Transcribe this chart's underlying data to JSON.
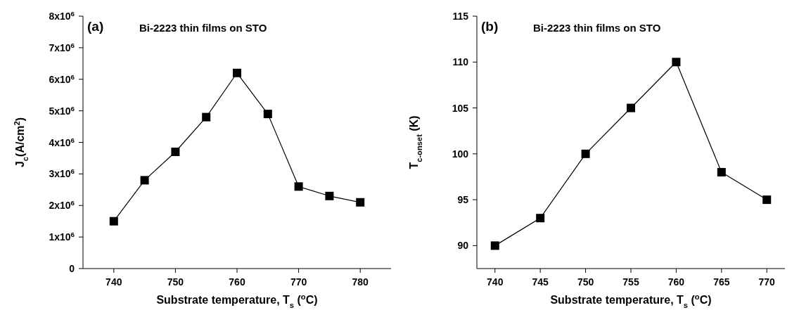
{
  "chart_data": [
    {
      "type": "line",
      "title": "Bi-2223 thin films on STO",
      "annotations": [
        "(a)"
      ],
      "xlabel": "Substrate temperature, T$_{s}$ ($^{o}$C)",
      "ylabel": "J$_{c}$(A/cm$^{2}$)",
      "x": [
        740,
        745,
        750,
        755,
        760,
        765,
        770,
        775,
        780
      ],
      "series": [
        {
          "color": "#000000",
          "values": [
            1500000,
            2800000,
            3700000,
            4800000,
            6200000,
            4900000,
            2600000,
            2300000,
            2100000
          ]
        }
      ],
      "xlim": [
        735,
        785
      ],
      "xticks": [
        740,
        750,
        760,
        770,
        780
      ],
      "ylim": [
        0,
        8000000
      ],
      "yticks": [
        0,
        {
          "value": 1000000,
          "label": "1x10$^{6}$"
        },
        {
          "value": 2000000,
          "label": "2x10$^{6}$"
        },
        {
          "value": 3000000,
          "label": "3x10$^{6}$"
        },
        {
          "value": 4000000,
          "label": "4x10$^{6}$"
        },
        {
          "value": 5000000,
          "label": "5x10$^{6}$"
        },
        {
          "value": 6000000,
          "label": "6x10$^{6}$"
        },
        {
          "value": 7000000,
          "label": "7x10$^{6}$"
        },
        {
          "value": 8000000,
          "label": "8x10$^{6}$"
        }
      ],
      "marker": "square",
      "line_style": "solid",
      "grid": false,
      "legend": false
    },
    {
      "type": "line",
      "title": "Bi-2223 thin films on STO",
      "annotations": [
        "(b)"
      ],
      "xlabel": "Substrate temperature, T$_{s}$ ($^{o}$C)",
      "ylabel": "T$_{c-onset}$ (K)",
      "x": [
        740,
        745,
        750,
        755,
        760,
        765,
        770
      ],
      "series": [
        {
          "color": "#000000",
          "values": [
            90,
            93,
            100,
            105,
            110,
            98,
            95
          ]
        }
      ],
      "xlim": [
        738,
        772
      ],
      "xticks": [
        740,
        745,
        750,
        755,
        760,
        765,
        770
      ],
      "ylim": [
        87.5,
        115
      ],
      "yticks": [
        90,
        95,
        100,
        105,
        110,
        115
      ],
      "marker": "square",
      "line_style": "solid",
      "grid": false,
      "legend": false
    }
  ]
}
